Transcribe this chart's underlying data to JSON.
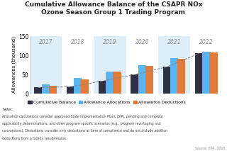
{
  "title": "Cumulative Allowance Balance of the CSAPR NOx\nOzone Season Group 1 Trading Program",
  "years": [
    "2017",
    "2018",
    "2019",
    "2020",
    "2021",
    "2022"
  ],
  "cumulative_balance": [
    16,
    18,
    33,
    50,
    70,
    105
  ],
  "allowance_allocations": [
    25,
    40,
    58,
    75,
    92,
    110
  ],
  "allowance_deductions": [
    21,
    38,
    57,
    73,
    91,
    108
  ],
  "color_cumulative": "#2d3142",
  "color_allocations": "#5ab4f0",
  "color_deductions": "#e07b3c",
  "color_bg_even": "#ddeef8",
  "color_bg_odd": "#ffffff",
  "ylabel": "Allowances (thousand)",
  "ylim": [
    0,
    150
  ],
  "yticks": [
    0,
    50,
    100,
    150
  ],
  "note_title": "Note:",
  "note_body": "Allocation calculations consider approved State Implementation Plans (SIP), pending and complete applicability determinations, and other program specific scenarios (e.g., program revintaging and conversions). Deductions consider only deductions at time of compliance and do not include addition deductions from a facility resubmission.",
  "source": "Source: EPA, 2023",
  "legend_labels": [
    "Cumulative Balance",
    "Allowance Allocations",
    "Allowance Deductions"
  ],
  "bar_width": 0.25
}
